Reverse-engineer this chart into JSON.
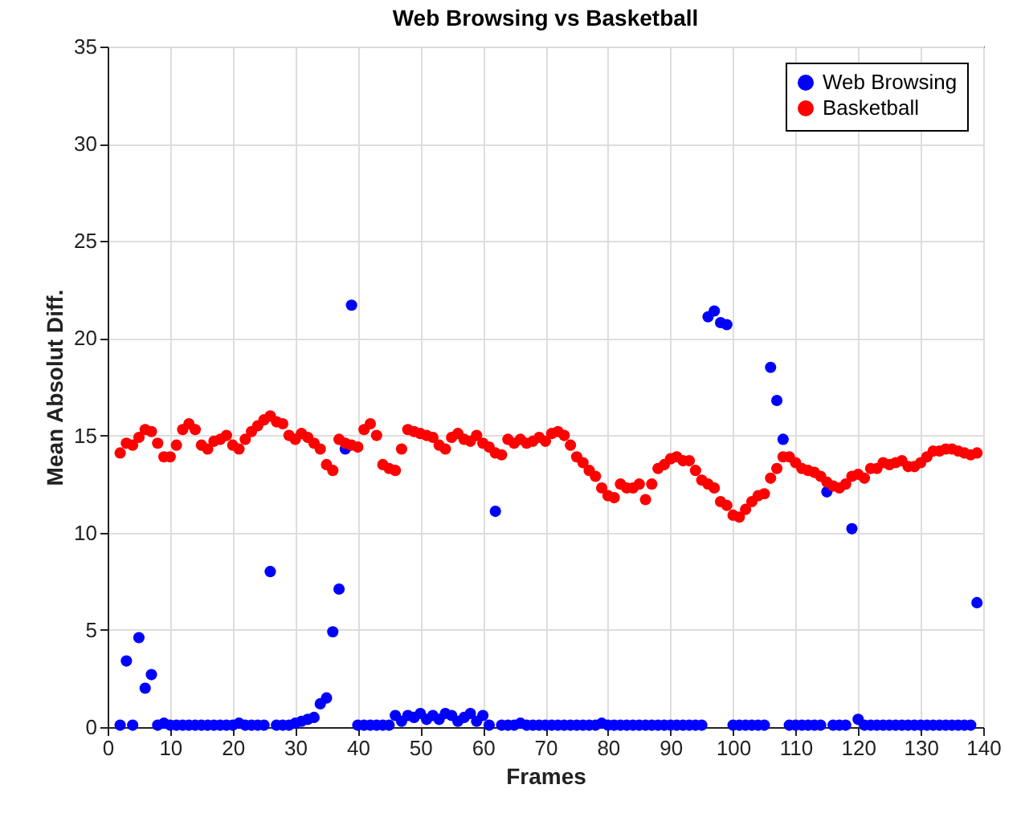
{
  "chart_data": {
    "type": "scatter",
    "title": "Web Browsing vs Basketball",
    "xlabel": "Frames",
    "ylabel": "Mean Absolut Diff.",
    "x": [
      2,
      3,
      4,
      5,
      6,
      7,
      8,
      9,
      10,
      11,
      12,
      13,
      14,
      15,
      16,
      17,
      18,
      19,
      20,
      21,
      22,
      23,
      24,
      25,
      26,
      27,
      28,
      29,
      30,
      31,
      32,
      33,
      34,
      35,
      36,
      37,
      38,
      39,
      40,
      41,
      42,
      43,
      44,
      45,
      46,
      47,
      48,
      49,
      50,
      51,
      52,
      53,
      54,
      55,
      56,
      57,
      58,
      59,
      60,
      61,
      62,
      63,
      64,
      65,
      66,
      67,
      68,
      69,
      70,
      71,
      72,
      73,
      74,
      75,
      76,
      77,
      78,
      79,
      80,
      81,
      82,
      83,
      84,
      85,
      86,
      87,
      88,
      89,
      90,
      91,
      92,
      93,
      94,
      95,
      96,
      97,
      98,
      99,
      100,
      101,
      102,
      103,
      104,
      105,
      106,
      107,
      108,
      109,
      110,
      111,
      112,
      113,
      114,
      115,
      116,
      117,
      118,
      119,
      120,
      121,
      122,
      123,
      124,
      125,
      126,
      127,
      128,
      129,
      130,
      131,
      132,
      133,
      134,
      135,
      136,
      137,
      138,
      139
    ],
    "series": [
      {
        "name": "Web Browsing",
        "color": "#0000ff",
        "values": [
          0.1,
          3.4,
          0.1,
          4.6,
          2.0,
          2.7,
          0.1,
          0.2,
          0.1,
          0.1,
          0.1,
          0.1,
          0.1,
          0.1,
          0.1,
          0.1,
          0.1,
          0.1,
          0.1,
          0.2,
          0.1,
          0.1,
          0.1,
          0.1,
          8.0,
          0.1,
          0.1,
          0.1,
          0.2,
          0.3,
          0.4,
          0.5,
          1.2,
          1.5,
          4.9,
          7.1,
          14.3,
          21.7,
          0.1,
          0.1,
          0.1,
          0.1,
          0.1,
          0.1,
          0.6,
          0.3,
          0.6,
          0.5,
          0.7,
          0.4,
          0.6,
          0.4,
          0.7,
          0.6,
          0.3,
          0.5,
          0.7,
          0.3,
          0.6,
          0.1,
          11.1,
          0.1,
          0.1,
          0.1,
          0.2,
          0.1,
          0.1,
          0.1,
          0.1,
          0.1,
          0.1,
          0.1,
          0.1,
          0.1,
          0.1,
          0.1,
          0.1,
          0.2,
          0.1,
          0.1,
          0.1,
          0.1,
          0.1,
          0.1,
          0.1,
          0.1,
          0.1,
          0.1,
          0.1,
          0.1,
          0.1,
          0.1,
          0.1,
          0.1,
          21.1,
          21.4,
          20.8,
          20.7,
          0.1,
          0.1,
          0.1,
          0.1,
          0.1,
          0.1,
          18.5,
          16.8,
          14.8,
          0.1,
          0.1,
          0.1,
          0.1,
          0.1,
          0.1,
          12.1,
          0.1,
          0.1,
          0.1,
          10.2,
          0.4,
          0.1,
          0.1,
          0.1,
          0.1,
          0.1,
          0.1,
          0.1,
          0.1,
          0.1,
          0.1,
          0.1,
          0.1,
          0.1,
          0.1,
          0.1,
          0.1,
          0.1,
          0.1,
          6.4
        ]
      },
      {
        "name": "Basketball",
        "color": "#ff0000",
        "values": [
          14.1,
          14.6,
          14.5,
          14.9,
          15.3,
          15.2,
          14.6,
          13.9,
          13.9,
          14.5,
          15.3,
          15.6,
          15.3,
          14.5,
          14.3,
          14.7,
          14.8,
          15.0,
          14.5,
          14.3,
          14.8,
          15.2,
          15.5,
          15.8,
          16.0,
          15.7,
          15.6,
          15.0,
          14.8,
          15.1,
          14.9,
          14.6,
          14.3,
          13.5,
          13.2,
          14.8,
          14.6,
          14.5,
          14.4,
          15.3,
          15.6,
          15.0,
          13.5,
          13.3,
          13.2,
          14.3,
          15.3,
          15.2,
          15.1,
          15.0,
          14.9,
          14.5,
          14.3,
          14.9,
          15.1,
          14.8,
          14.7,
          15.0,
          14.6,
          14.4,
          14.1,
          14.0,
          14.8,
          14.6,
          14.8,
          14.6,
          14.7,
          14.9,
          14.7,
          15.1,
          15.2,
          15.0,
          14.5,
          13.9,
          13.6,
          13.2,
          12.9,
          12.3,
          11.9,
          11.8,
          12.5,
          12.3,
          12.3,
          12.5,
          11.7,
          12.5,
          13.3,
          13.5,
          13.8,
          13.9,
          13.7,
          13.7,
          13.2,
          12.7,
          12.5,
          12.3,
          11.6,
          11.4,
          10.9,
          10.8,
          11.2,
          11.6,
          11.9,
          12.0,
          12.8,
          13.3,
          13.9,
          13.9,
          13.6,
          13.3,
          13.2,
          13.1,
          12.9,
          12.6,
          12.4,
          12.3,
          12.5,
          12.9,
          13.0,
          12.8,
          13.3,
          13.3,
          13.6,
          13.5,
          13.6,
          13.7,
          13.4,
          13.4,
          13.6,
          13.9,
          14.2,
          14.2,
          14.3,
          14.3,
          14.2,
          14.1,
          14.0,
          14.1
        ]
      }
    ],
    "xlim": [
      0,
      140
    ],
    "xticks": [
      0,
      10,
      20,
      30,
      40,
      50,
      60,
      70,
      80,
      90,
      100,
      110,
      120,
      130,
      140
    ],
    "ylim": [
      0,
      35
    ],
    "yticks": [
      0,
      5,
      10,
      15,
      20,
      25,
      30,
      35
    ],
    "grid": true,
    "legend": "top right",
    "marker": "circle"
  }
}
